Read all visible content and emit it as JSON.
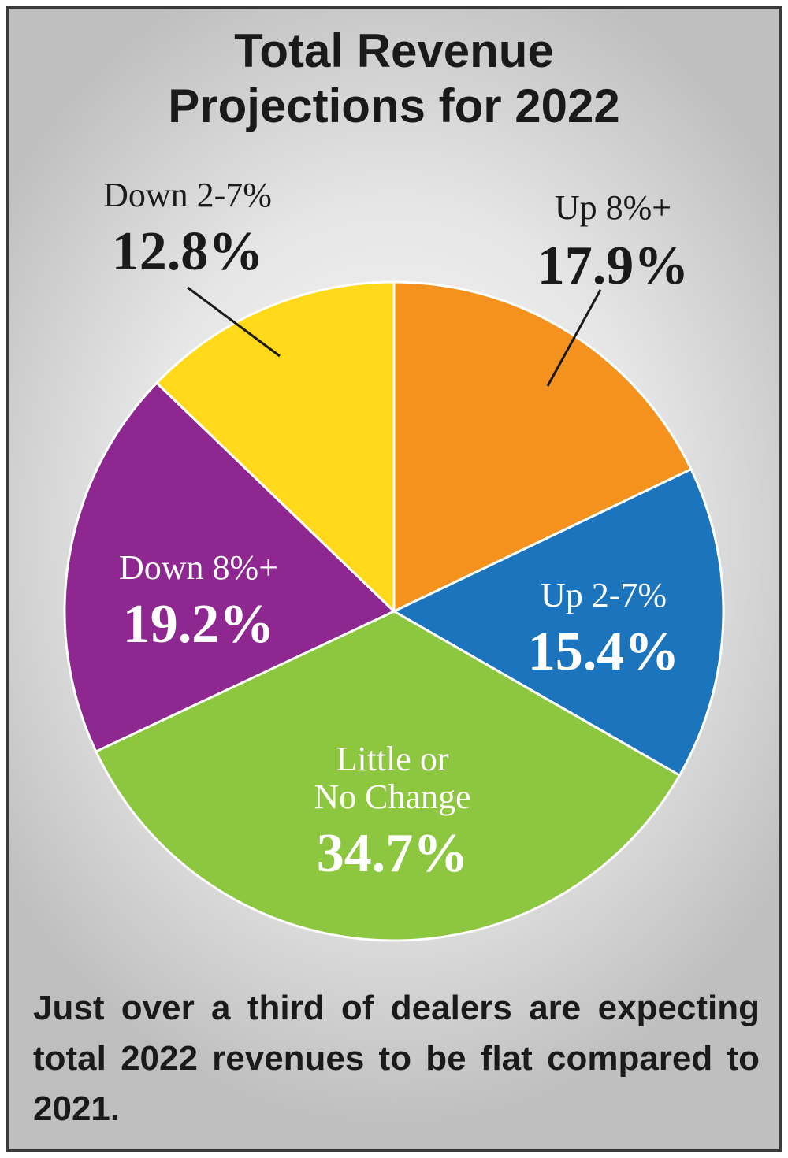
{
  "chart_data": {
    "type": "pie",
    "title": [
      "Total Revenue",
      "Projections for 2022"
    ],
    "slices": [
      {
        "label": "Up 8%+",
        "value": 17.9,
        "value_label": "17.9%",
        "color": "#f5921e"
      },
      {
        "label": "Up 2-7%",
        "value": 15.4,
        "value_label": "15.4%",
        "color": "#1c75bc"
      },
      {
        "label": [
          "Little or",
          "No Change"
        ],
        "value": 34.7,
        "value_label": "34.7%",
        "color": "#8dc63f"
      },
      {
        "label": "Down 8%+",
        "value": 19.2,
        "value_label": "19.2%",
        "color": "#8e278f"
      },
      {
        "label": "Down 2-7%",
        "value": 12.8,
        "value_label": "12.8%",
        "color": "#ffd91a"
      }
    ]
  },
  "caption": "Just over a third of dealers are expecting total 2022 revenues to be flat compared to 2021."
}
